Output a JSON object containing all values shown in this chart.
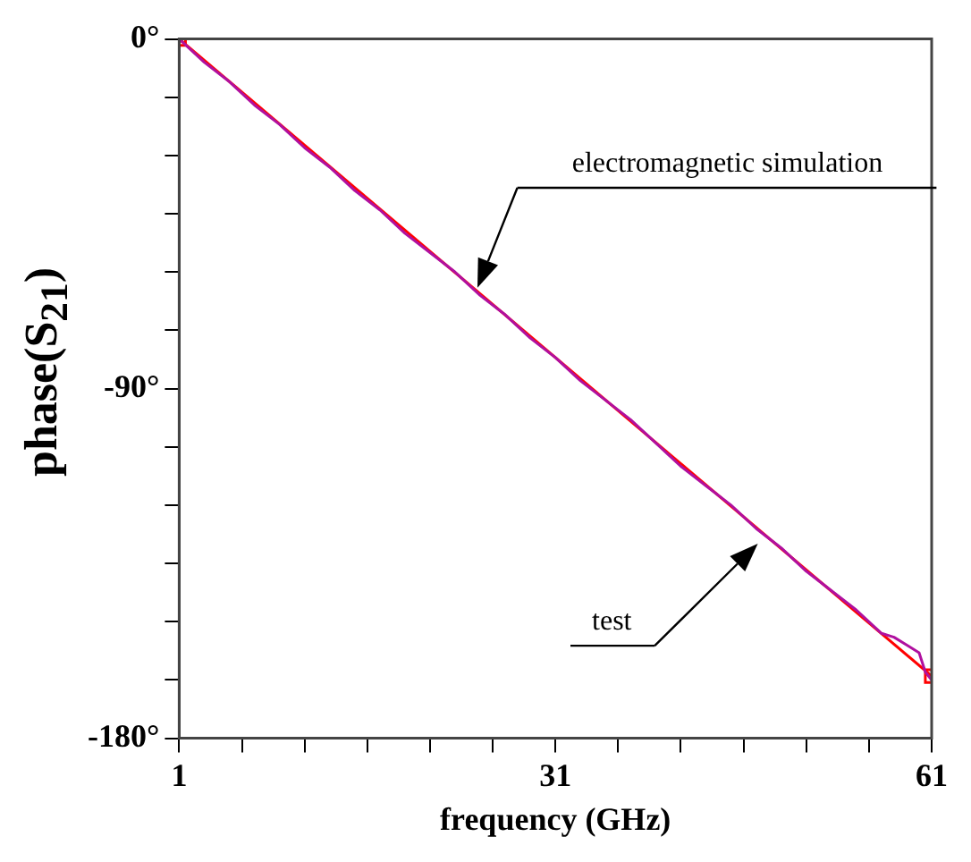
{
  "chart_data": {
    "type": "line",
    "xlabel": "frequency (GHz)",
    "ylabel": "phase(S$_{21}$)",
    "xlim": [
      1,
      61
    ],
    "ylim": [
      -180,
      0
    ],
    "xticks": [
      1,
      {
        "value": 6,
        "label": null
      },
      {
        "value": 11,
        "label": null
      },
      {
        "value": 16,
        "label": null
      },
      {
        "value": 21,
        "label": null
      },
      {
        "value": 26,
        "label": null
      },
      31,
      {
        "value": 36,
        "label": null
      },
      {
        "value": 41,
        "label": null
      },
      {
        "value": 46,
        "label": null
      },
      {
        "value": 51,
        "label": null
      },
      {
        "value": 56,
        "label": null
      },
      61
    ],
    "yticks": [
      {
        "value": 0,
        "label": "0°"
      },
      {
        "value": -15,
        "label": null
      },
      {
        "value": -30,
        "label": null
      },
      {
        "value": -45,
        "label": null
      },
      {
        "value": -60,
        "label": null
      },
      {
        "value": -75,
        "label": null
      },
      {
        "value": -90,
        "label": "-90°"
      },
      {
        "value": -105,
        "label": null
      },
      {
        "value": -120,
        "label": null
      },
      {
        "value": -135,
        "label": null
      },
      {
        "value": -150,
        "label": null
      },
      {
        "value": -165,
        "label": null
      },
      {
        "value": -180,
        "label": "-180°"
      }
    ],
    "grid": false,
    "legend": false,
    "line_style": "solid",
    "series": [
      {
        "color": "#b0109f",
        "marker": "none",
        "x": [
          1,
          3,
          5,
          7,
          9,
          11,
          13,
          15,
          17,
          19,
          21,
          23,
          25,
          27,
          29,
          31,
          33,
          35,
          37,
          39,
          41,
          43,
          45,
          47,
          49,
          51,
          53,
          55,
          57,
          58,
          59,
          60,
          60.5,
          61
        ],
        "values": [
          0,
          -6,
          -11,
          -17,
          -22,
          -28,
          -33,
          -39,
          -44,
          -50,
          -55,
          -60,
          -66,
          -71,
          -77,
          -82,
          -88,
          -93,
          -98,
          -104,
          -110,
          -115,
          -120,
          -126,
          -131,
          -137,
          -142,
          -147,
          -153,
          -154,
          -156,
          -158,
          -163,
          -165
        ]
      },
      {
        "color": "#ff0000",
        "marker": "square",
        "x": [
          1,
          61
        ],
        "values": [
          0,
          -164
        ]
      }
    ],
    "annotations": [
      "electromagnetic simulation",
      "test"
    ]
  }
}
